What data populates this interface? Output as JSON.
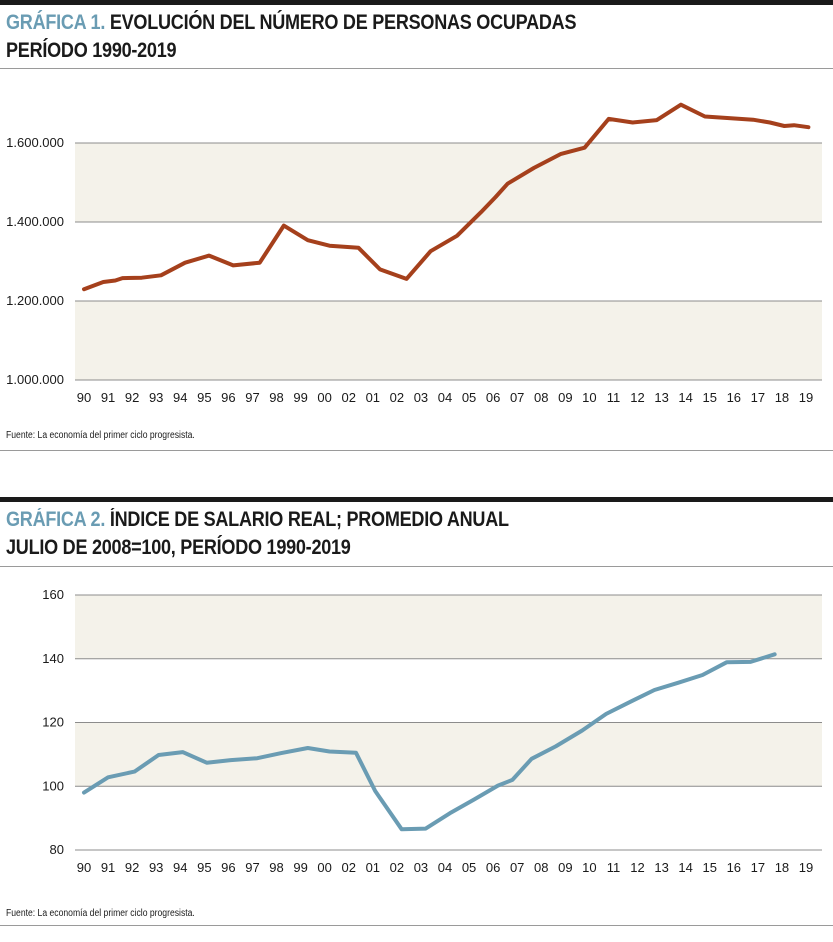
{
  "charts": [
    {
      "title_label": "GRÁFICA 1.",
      "title_rest": " EVOLUCIÓN DEL NÚMERO DE PERSONAS OCUPADAS",
      "subtitle": "PERÍODO 1990-2019",
      "source": "Fuente: La economía del primer ciclo progresista."
    },
    {
      "title_label": "GRÁFICA 2.",
      "title_rest": " ÍNDICE DE SALARIO REAL; PROMEDIO ANUAL",
      "subtitle": "JULIO DE 2008=100, PERÍODO 1990-2019",
      "source": "Fuente: La economía del primer ciclo progresista."
    }
  ],
  "chart_data": [
    {
      "type": "line",
      "title": "EVOLUCIÓN DEL NÚMERO DE PERSONAS OCUPADAS",
      "categories": [
        "90",
        "91",
        "92",
        "93",
        "94",
        "95",
        "96",
        "97",
        "98",
        "99",
        "00",
        "02",
        "01",
        "02",
        "03",
        "04",
        "05",
        "06",
        "07",
        "08",
        "09",
        "10",
        "11",
        "12",
        "13",
        "14",
        "15",
        "16",
        "17",
        "18",
        "19"
      ],
      "yticks": [
        1000000,
        1200000,
        1400000,
        1600000
      ],
      "ytick_labels": [
        "1.000.000",
        "1.200.000",
        "1.400.000",
        "1.600.000"
      ],
      "ylim": [
        1000000,
        1700000
      ],
      "series": [
        {
          "name": "Personas ocupadas",
          "color": "#a5401c",
          "points": [
            [
              0,
              1230000
            ],
            [
              0.8,
              1248000
            ],
            [
              1.3,
              1252000
            ],
            [
              1.6,
              1258000
            ],
            [
              2.4,
              1259000
            ],
            [
              3.2,
              1265000
            ],
            [
              4.2,
              1297000
            ],
            [
              5.2,
              1315000
            ],
            [
              6.2,
              1290000
            ],
            [
              7.3,
              1297000
            ],
            [
              8.3,
              1391000
            ],
            [
              9.3,
              1354000
            ],
            [
              10.2,
              1340000
            ],
            [
              11.4,
              1335000
            ],
            [
              12.3,
              1280000
            ],
            [
              13.4,
              1256000
            ],
            [
              14.4,
              1326000
            ],
            [
              15.5,
              1365000
            ],
            [
              16.5,
              1425000
            ],
            [
              17.1,
              1463000
            ],
            [
              17.6,
              1497000
            ],
            [
              18.7,
              1537000
            ],
            [
              19.8,
              1572000
            ],
            [
              20.8,
              1588000
            ],
            [
              21.8,
              1661000
            ],
            [
              22.8,
              1652000
            ],
            [
              23.8,
              1658000
            ],
            [
              24.8,
              1697000
            ],
            [
              25.8,
              1667000
            ],
            [
              26.8,
              1663000
            ],
            [
              27.8,
              1659000
            ],
            [
              28.5,
              1652000
            ],
            [
              29.1,
              1643000
            ],
            [
              29.5,
              1645000
            ],
            [
              30.1,
              1640000
            ]
          ]
        }
      ]
    },
    {
      "type": "line",
      "title": "ÍNDICE DE SALARIO REAL; PROMEDIO ANUAL",
      "categories": [
        "90",
        "91",
        "92",
        "93",
        "94",
        "95",
        "96",
        "97",
        "98",
        "99",
        "00",
        "02",
        "01",
        "02",
        "03",
        "04",
        "05",
        "06",
        "07",
        "08",
        "09",
        "10",
        "11",
        "12",
        "13",
        "14",
        "15",
        "16",
        "17",
        "18",
        "19"
      ],
      "yticks": [
        80,
        100,
        120,
        140,
        160
      ],
      "ytick_labels": [
        "80",
        "100",
        "120",
        "140",
        "160"
      ],
      "ylim": [
        80,
        162
      ],
      "series": [
        {
          "name": "Índice de salario real",
          "color": "#6a9cb3",
          "points": [
            [
              0,
              98
            ],
            [
              1,
              102.8
            ],
            [
              2.1,
              104.6
            ],
            [
              3.1,
              109.8
            ],
            [
              4.1,
              110.7
            ],
            [
              5.1,
              107.4
            ],
            [
              6.1,
              108.2
            ],
            [
              7.2,
              108.8
            ],
            [
              8.2,
              110.4
            ],
            [
              9.3,
              112
            ],
            [
              10.2,
              110.9
            ],
            [
              11.3,
              110.5
            ],
            [
              12.1,
              98.5
            ],
            [
              13.2,
              86.5
            ],
            [
              14.2,
              86.7
            ],
            [
              15.2,
              91.5
            ],
            [
              16.2,
              95.8
            ],
            [
              17.2,
              100.2
            ],
            [
              17.8,
              102
            ],
            [
              18.6,
              108.6
            ],
            [
              19.6,
              112.5
            ],
            [
              20.7,
              117.5
            ],
            [
              21.7,
              122.7
            ],
            [
              22.7,
              126.5
            ],
            [
              23.7,
              130.2
            ],
            [
              24.7,
              132.5
            ],
            [
              25.7,
              134.9
            ],
            [
              26.7,
              138.9
            ],
            [
              27.7,
              139
            ],
            [
              28.7,
              141.4
            ]
          ]
        }
      ]
    }
  ]
}
